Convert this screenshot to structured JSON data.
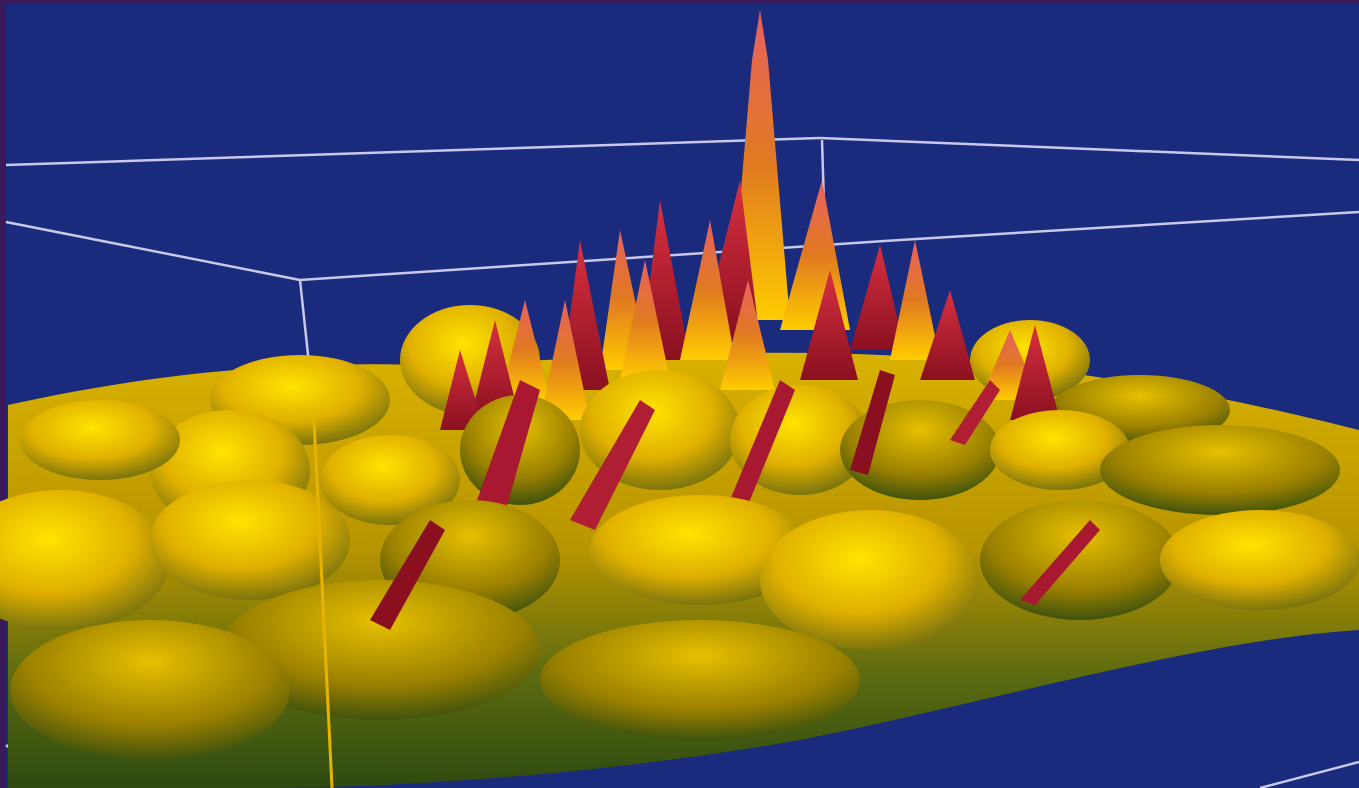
{
  "scene": {
    "subject": "3d-surface-landscape",
    "colors": {
      "background": "#1a2a7c",
      "frame": "#3a1a5a",
      "surface_light": "#ffd800",
      "surface_mid": "#e0a800",
      "surface_dark": "#2e4a10",
      "spike": "#c81e3c",
      "spike_tip": "#e86060",
      "gridline": "#c8c8e8",
      "marker_line": "#e6b400"
    }
  }
}
